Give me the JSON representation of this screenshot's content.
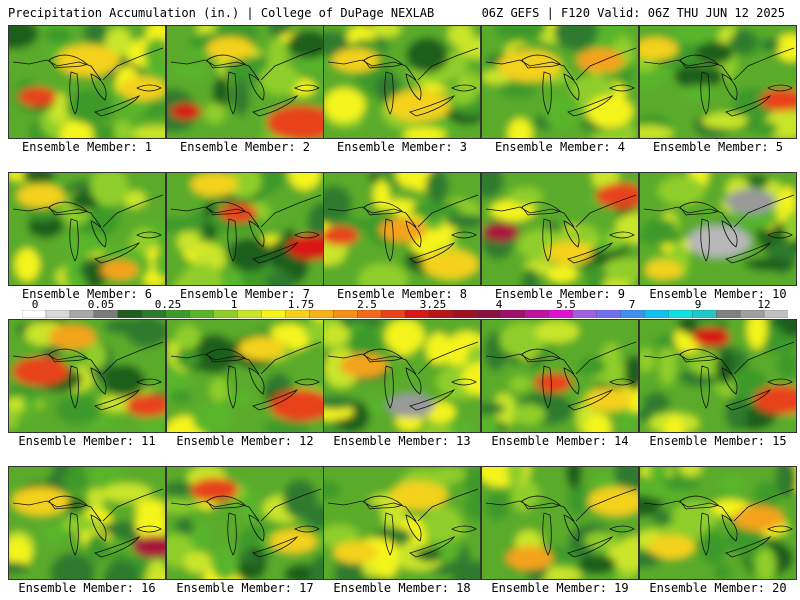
{
  "header": {
    "left": "Precipitation Accumulation (in.) | College of DuPage NEXLAB",
    "right": "06Z GEFS | F120 Valid: 06Z THU JUN 12 2025"
  },
  "panel_prefix": "Ensemble Member: ",
  "panels": [
    {
      "label": "Ensemble Member: 1",
      "hot": [
        [
          0.18,
          0.62,
          0.12,
          "#e8431c"
        ],
        [
          0.5,
          0.3,
          0.2,
          "#f4d11a"
        ],
        [
          0.85,
          0.55,
          0.15,
          "#f4d11a"
        ]
      ]
    },
    {
      "label": "Ensemble Member: 2",
      "hot": [
        [
          0.85,
          0.85,
          0.22,
          "#e8431c"
        ],
        [
          0.12,
          0.75,
          0.1,
          "#d81818"
        ],
        [
          0.4,
          0.2,
          0.15,
          "#f4d11a"
        ]
      ]
    },
    {
      "label": "Ensemble Member: 3",
      "hot": [
        [
          0.6,
          0.7,
          0.2,
          "#f4d11a"
        ],
        [
          0.2,
          0.3,
          0.15,
          "#f4d11a"
        ]
      ]
    },
    {
      "label": "Ensemble Member: 4",
      "hot": [
        [
          0.3,
          0.35,
          0.2,
          "#f4d11a"
        ],
        [
          0.75,
          0.3,
          0.15,
          "#f5a31a"
        ]
      ]
    },
    {
      "label": "Ensemble Member: 5",
      "hot": [
        [
          0.9,
          0.65,
          0.14,
          "#e8431c"
        ],
        [
          0.1,
          0.2,
          0.14,
          "#f4d11a"
        ]
      ]
    },
    {
      "label": "Ensemble Member: 6",
      "hot": [
        [
          0.2,
          0.2,
          0.15,
          "#f4d11a"
        ],
        [
          0.7,
          0.85,
          0.12,
          "#f5a31a"
        ]
      ]
    },
    {
      "label": "Ensemble Member: 7",
      "hot": [
        [
          0.45,
          0.35,
          0.12,
          "#e8431c"
        ],
        [
          0.92,
          0.65,
          0.16,
          "#d81818"
        ],
        [
          0.3,
          0.1,
          0.15,
          "#f4d11a"
        ]
      ]
    },
    {
      "label": "Ensemble Member: 8",
      "hot": [
        [
          0.1,
          0.55,
          0.12,
          "#e8431c"
        ],
        [
          0.5,
          0.5,
          0.15,
          "#f5a31a"
        ],
        [
          0.8,
          0.8,
          0.18,
          "#f4d11a"
        ]
      ]
    },
    {
      "label": "Ensemble Member: 9",
      "hot": [
        [
          0.12,
          0.52,
          0.12,
          "#a8123a"
        ],
        [
          0.88,
          0.2,
          0.16,
          "#e8431c"
        ],
        [
          0.55,
          0.7,
          0.15,
          "#f4d11a"
        ]
      ]
    },
    {
      "label": "Ensemble Member: 10",
      "hot": [
        [
          0.5,
          0.6,
          0.2,
          "#b7b7b7"
        ],
        [
          0.7,
          0.25,
          0.16,
          "#9a9a9a"
        ],
        [
          0.15,
          0.85,
          0.12,
          "#f4d11a"
        ]
      ]
    },
    {
      "label": "Ensemble Member: 11",
      "hot": [
        [
          0.2,
          0.45,
          0.18,
          "#e8431c"
        ],
        [
          0.88,
          0.75,
          0.14,
          "#e8431c"
        ],
        [
          0.4,
          0.15,
          0.15,
          "#f5a31a"
        ]
      ]
    },
    {
      "label": "Ensemble Member: 12",
      "hot": [
        [
          0.85,
          0.75,
          0.2,
          "#e8431c"
        ],
        [
          0.6,
          0.25,
          0.15,
          "#f4d11a"
        ]
      ]
    },
    {
      "label": "Ensemble Member: 13",
      "hot": [
        [
          0.25,
          0.4,
          0.15,
          "#f5a31a"
        ],
        [
          0.55,
          0.75,
          0.15,
          "#9a9a9a"
        ]
      ]
    },
    {
      "label": "Ensemble Member: 14",
      "hot": [
        [
          0.45,
          0.55,
          0.12,
          "#e8431c"
        ],
        [
          0.8,
          0.7,
          0.15,
          "#f4d11a"
        ]
      ]
    },
    {
      "label": "Ensemble Member: 15",
      "hot": [
        [
          0.9,
          0.7,
          0.18,
          "#e8431c"
        ],
        [
          0.45,
          0.15,
          0.12,
          "#d81818"
        ]
      ]
    },
    {
      "label": "Ensemble Member: 16",
      "hot": [
        [
          0.92,
          0.7,
          0.14,
          "#a8123a"
        ],
        [
          0.2,
          0.3,
          0.18,
          "#f4d11a"
        ]
      ]
    },
    {
      "label": "Ensemble Member: 17",
      "hot": [
        [
          0.3,
          0.2,
          0.15,
          "#e8431c"
        ],
        [
          0.8,
          0.65,
          0.15,
          "#f4d11a"
        ]
      ]
    },
    {
      "label": "Ensemble Member: 18",
      "hot": [
        [
          0.6,
          0.25,
          0.18,
          "#f4d11a"
        ],
        [
          0.2,
          0.75,
          0.14,
          "#f4d11a"
        ]
      ]
    },
    {
      "label": "Ensemble Member: 19",
      "hot": [
        [
          0.85,
          0.3,
          0.18,
          "#f4d11a"
        ],
        [
          0.3,
          0.8,
          0.15,
          "#f5a31a"
        ]
      ]
    },
    {
      "label": "Ensemble Member: 20",
      "hot": [
        [
          0.2,
          0.7,
          0.15,
          "#f4d11a"
        ],
        [
          0.75,
          0.45,
          0.16,
          "#f5a31a"
        ]
      ]
    }
  ],
  "scale": {
    "ticks": [
      "0",
      "0.05",
      "0.25",
      "1",
      "1.75",
      "2.5",
      "3.25",
      "4",
      "5.5",
      "7",
      "9",
      "12"
    ],
    "colors": [
      "#ffffff",
      "#d8d8d8",
      "#a8a8a8",
      "#7a7a7a",
      "#1f5e1f",
      "#2d7a2d",
      "#3e9a2a",
      "#59b52a",
      "#8fce2a",
      "#c9e52a",
      "#f4f41a",
      "#f4d11a",
      "#f5b31a",
      "#f58f1a",
      "#f06a1a",
      "#e8431c",
      "#d81818",
      "#b81416",
      "#9e1220",
      "#8a1040",
      "#a0106a",
      "#c010a0",
      "#e010d0",
      "#a060e0",
      "#7070f0",
      "#4090f0",
      "#10c0f0",
      "#10e0e0",
      "#20c8c8",
      "#808080",
      "#a0a0a0",
      "#c0c0c0"
    ]
  }
}
